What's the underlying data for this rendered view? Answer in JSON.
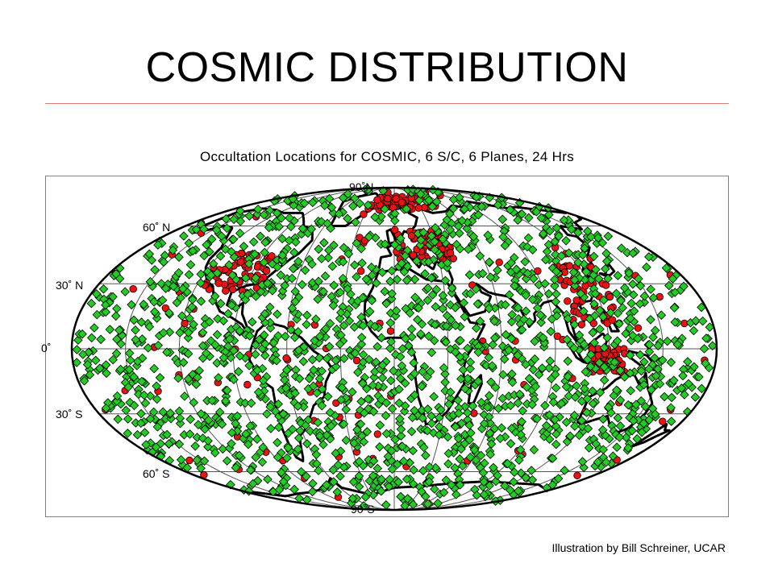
{
  "slide": {
    "title": "COSMIC DISTRIBUTION",
    "credit": "Illustration by Bill Schreiner, UCAR"
  },
  "map": {
    "title": "Occultation Locations for COSMIC, 6 S/C, 6 Planes, 24 Hrs",
    "projection": "mollweide",
    "graticule_lat_step_deg": 30,
    "graticule_lon_step_deg": 30,
    "lat_labels": {
      "n90": "90˚N",
      "n60": "60˚ N",
      "n30": "30˚ N",
      "eq": "0˚",
      "s30": "30˚ S",
      "s60": "60˚ S",
      "s90": "90˚S"
    },
    "legend": "none",
    "colors": {
      "green_marker": "#22cc22",
      "red_marker": "#ee1111",
      "coastline": "#000000",
      "graticule": "#555555",
      "title_rule": "#e08070"
    },
    "marker_types": [
      "green-diamond",
      "red-circle"
    ],
    "description_counts": {
      "green_diamonds_approx": 2500,
      "red_circles_approx": 500
    }
  }
}
